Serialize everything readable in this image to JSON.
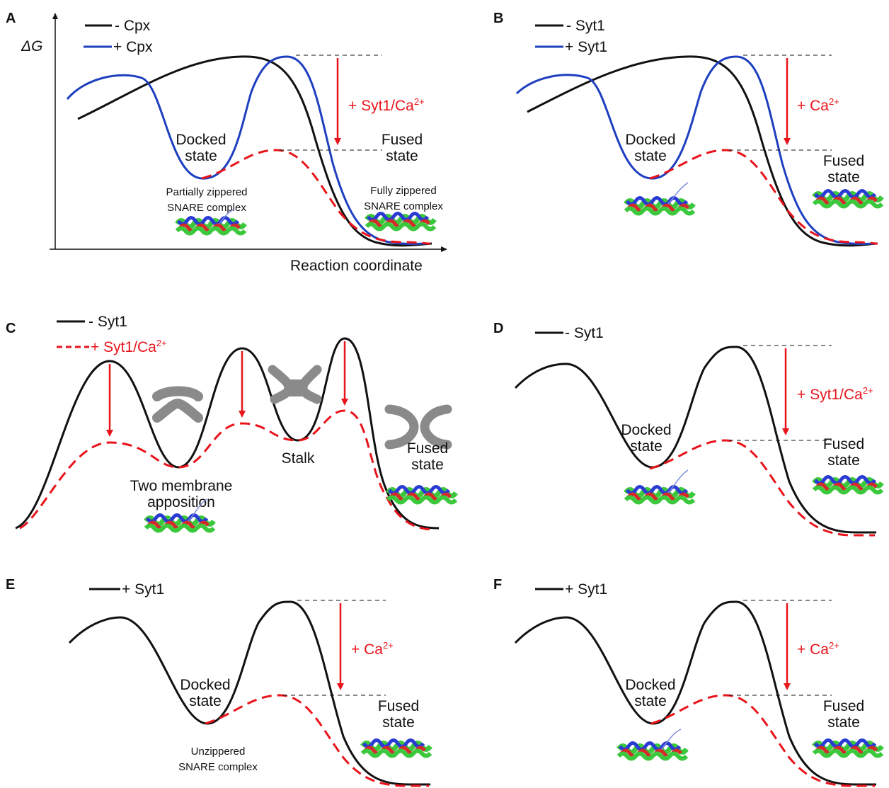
{
  "colors": {
    "black": "#111111",
    "blue": "#1e3fbf",
    "red": "#e8141b",
    "membrane": "#8a8a8a",
    "snare_green": "#3cc83c",
    "snare_red": "#d42a2a",
    "snare_blue": "#2a3bd4"
  },
  "panels": {
    "A": {
      "letter": "A",
      "legend": [
        "- Cpx",
        "+ Cpx"
      ],
      "ylabel": "ΔG",
      "xlabel": "Reaction coordinate",
      "drop_label": "+ Syt1/Ca",
      "drop_sup": "2+",
      "docked": [
        "Docked",
        "state"
      ],
      "fused": [
        "Fused",
        "state"
      ],
      "snare_left": [
        "Partially zippered",
        "SNARE complex"
      ],
      "snare_right": [
        "Fully zippered",
        "SNARE complex"
      ]
    },
    "B": {
      "letter": "B",
      "legend": [
        "- Syt1",
        "+ Syt1"
      ],
      "drop_label": "+ Ca",
      "drop_sup": "2+",
      "docked": [
        "Docked",
        "state"
      ],
      "fused": [
        "Fused",
        "state"
      ]
    },
    "C": {
      "letter": "C",
      "legend": [
        "- Syt1",
        "+ Syt1/Ca"
      ],
      "legend_sup": "2+",
      "apposition": [
        "Two membrane",
        "apposition"
      ],
      "stalk": "Stalk",
      "fused": [
        "Fused",
        "state"
      ]
    },
    "D": {
      "letter": "D",
      "legend": [
        "- Syt1"
      ],
      "drop_label": "+ Syt1/Ca",
      "drop_sup": "2+",
      "docked": [
        "Docked",
        "state"
      ],
      "fused": [
        "Fused",
        "state"
      ]
    },
    "E": {
      "letter": "E",
      "legend": [
        "+ Syt1"
      ],
      "drop_label": "+ Ca",
      "drop_sup": "2+",
      "docked": [
        "Docked",
        "state"
      ],
      "fused": [
        "Fused",
        "state"
      ],
      "snare_left": [
        "Unzippered",
        "SNARE complex"
      ]
    },
    "F": {
      "letter": "F",
      "legend": [
        "+ Syt1"
      ],
      "drop_label": "+ Ca",
      "drop_sup": "2+",
      "docked": [
        "Docked",
        "state"
      ],
      "fused": [
        "Fused",
        "state"
      ]
    }
  }
}
